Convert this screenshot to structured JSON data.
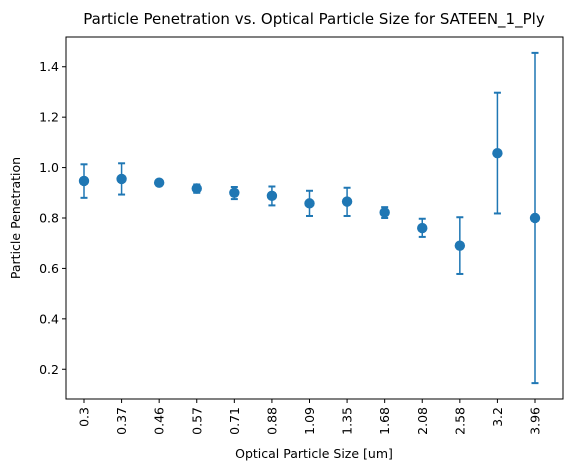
{
  "chart_data": {
    "type": "scatter",
    "title": "Particle Penetration vs. Optical Particle Size for SATEEN_1_Ply",
    "xlabel": "Optical Particle Size [um]",
    "ylabel": "Particle Penetration",
    "categories": [
      "0.3",
      "0.37",
      "0.46",
      "0.57",
      "0.71",
      "0.88",
      "1.09",
      "1.35",
      "1.68",
      "2.08",
      "2.58",
      "3.2",
      "3.96"
    ],
    "values": [
      0.947,
      0.955,
      0.94,
      0.917,
      0.9,
      0.888,
      0.858,
      0.865,
      0.822,
      0.76,
      0.69,
      1.057,
      0.8
    ],
    "error_low": [
      0.88,
      0.893,
      0.933,
      0.9,
      0.875,
      0.85,
      0.808,
      0.808,
      0.8,
      0.725,
      0.578,
      0.818,
      0.145
    ],
    "error_high": [
      1.013,
      1.017,
      0.947,
      0.933,
      0.923,
      0.925,
      0.908,
      0.92,
      0.843,
      0.797,
      0.803,
      1.297,
      1.455
    ],
    "yticks": [
      0.2,
      0.4,
      0.6,
      0.8,
      1.0,
      1.2,
      1.4
    ],
    "ylim": [
      0.082,
      1.518
    ],
    "grid": false,
    "color": "#1f77b4"
  }
}
